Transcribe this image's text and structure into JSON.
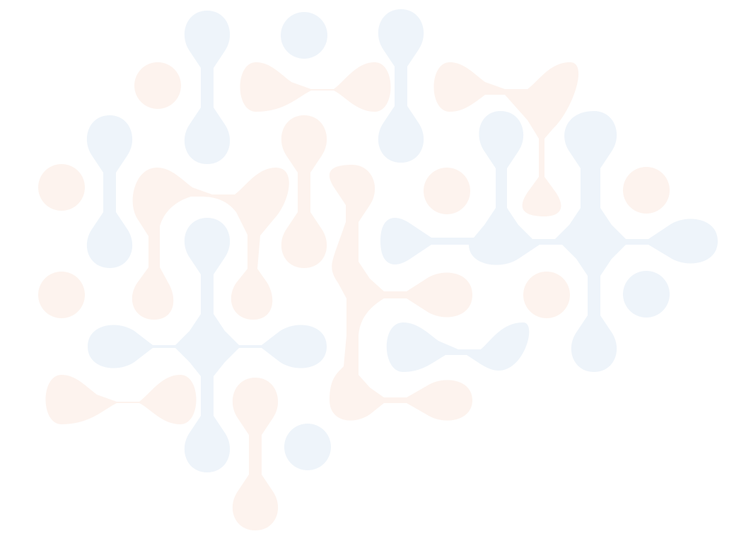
{
  "illustration": {
    "name": "brain-network-pattern",
    "colors": {
      "background": "#ffffff",
      "blue": "#eef4fa",
      "peach": "#fdf3ee"
    }
  }
}
